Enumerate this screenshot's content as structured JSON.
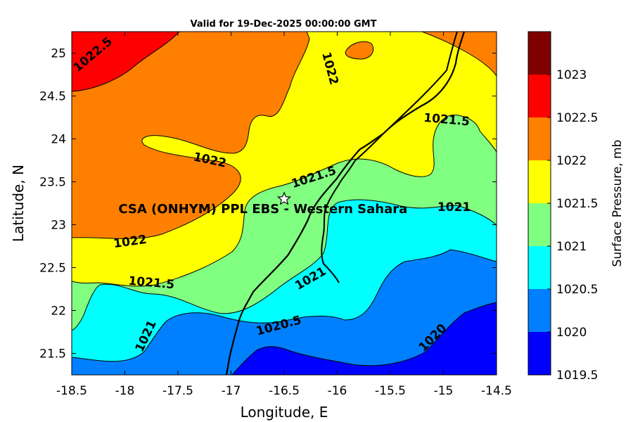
{
  "title": "Valid for 19-Dec-2025 00:00:00 GMT",
  "xlabel": "Longitude, E",
  "ylabel": "Latitude, N",
  "x_ticks": [
    "-18.5",
    "-18",
    "-17.5",
    "-17",
    "-16.5",
    "-16",
    "-15.5",
    "-15",
    "-14.5"
  ],
  "y_ticks": [
    "21.5",
    "22",
    "22.5",
    "23",
    "23.5",
    "24",
    "24.5",
    "25"
  ],
  "station": {
    "label": "CSA (ONHYM) PPL EBS  - Western Sahara",
    "lon": -16.5,
    "lat": 23.3
  },
  "colorbar": {
    "label": "Surface Pressure, mb",
    "ticks": [
      "1019.5",
      "1020",
      "1020.5",
      "1021",
      "1021.5",
      "1022",
      "1022.5",
      "1023"
    ],
    "colors": [
      "#0000ff",
      "#0080ff",
      "#00ffff",
      "#80ff80",
      "#ffff00",
      "#ff8000",
      "#ff0000",
      "#800000"
    ]
  },
  "contour_labels": [
    {
      "text": "1022.5",
      "lon": -18.3,
      "lat": 24.98,
      "angle": -40
    },
    {
      "text": "1022",
      "lon": -16.07,
      "lat": 24.82,
      "angle": 75
    },
    {
      "text": "1022",
      "lon": -17.2,
      "lat": 23.75,
      "angle": 12
    },
    {
      "text": "1022",
      "lon": -17.95,
      "lat": 22.8,
      "angle": -8
    },
    {
      "text": "1021.5",
      "lon": -16.22,
      "lat": 23.55,
      "angle": -18
    },
    {
      "text": "1021.5",
      "lon": -14.97,
      "lat": 24.22,
      "angle": 5
    },
    {
      "text": "1021.5",
      "lon": -17.75,
      "lat": 22.32,
      "angle": 5
    },
    {
      "text": "1021",
      "lon": -14.9,
      "lat": 23.2,
      "angle": 0
    },
    {
      "text": "1021",
      "lon": -16.25,
      "lat": 22.37,
      "angle": -30
    },
    {
      "text": "1021",
      "lon": -17.8,
      "lat": 21.7,
      "angle": -65
    },
    {
      "text": "1020.5",
      "lon": -16.55,
      "lat": 21.82,
      "angle": -15
    },
    {
      "text": "1020",
      "lon": -15.1,
      "lat": 21.68,
      "angle": -45
    }
  ]
}
